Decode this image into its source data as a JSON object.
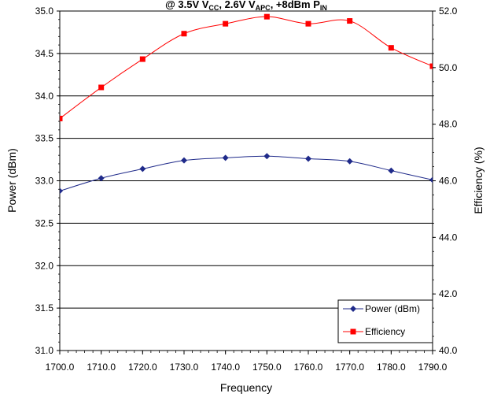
{
  "chart_data": {
    "type": "line",
    "title_parts": [
      "@ 3.5V V",
      "CC",
      ", 2.6V V",
      "APC",
      ", +8dBm P",
      "IN"
    ],
    "xlabel": "Frequency",
    "ylabel_left": "Power (dBm)",
    "ylabel_right": "Efficiency (%)",
    "x": [
      1700.0,
      1710.0,
      1720.0,
      1730.0,
      1740.0,
      1750.0,
      1760.0,
      1770.0,
      1780.0,
      1790.0
    ],
    "x_tick_labels": [
      "1700.0",
      "1710.0",
      "1720.0",
      "1730.0",
      "1740.0",
      "1750.0",
      "1760.0",
      "1770.0",
      "1780.0",
      "1790.0"
    ],
    "xlim": [
      1700,
      1790
    ],
    "ylim_left": [
      31.0,
      35.0
    ],
    "ylim_right": [
      40.0,
      52.0
    ],
    "y_left_tick_labels": [
      "31.0",
      "31.5",
      "32.0",
      "32.5",
      "33.0",
      "33.5",
      "34.0",
      "34.5",
      "35.0"
    ],
    "y_right_tick_labels": [
      "40.0",
      "42.0",
      "44.0",
      "46.0",
      "48.0",
      "50.0",
      "52.0"
    ],
    "grid": true,
    "legend_position": "bottom-right",
    "series": [
      {
        "name": "Power (dBm)",
        "axis": "left",
        "color": "#1f2a8a",
        "marker": "diamond",
        "values": [
          32.88,
          33.03,
          33.14,
          33.24,
          33.27,
          33.29,
          33.26,
          33.23,
          33.12,
          33.01
        ]
      },
      {
        "name": "Efficiency",
        "axis": "right",
        "color": "#ff0000",
        "marker": "square",
        "values": [
          48.2,
          49.3,
          50.3,
          51.2,
          51.55,
          51.8,
          51.55,
          51.65,
          50.7,
          50.05
        ]
      }
    ]
  }
}
